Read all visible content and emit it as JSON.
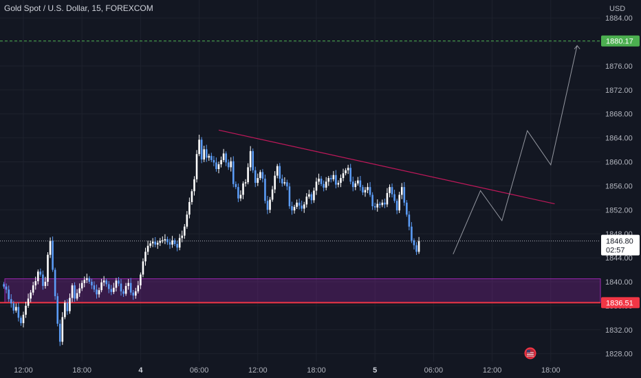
{
  "chart_data": {
    "type": "candlestick",
    "title": "Gold Spot / U.S. Dollar, 15, FOREXCOM",
    "currency": "USD",
    "y_ticks": [
      1828,
      1832,
      1836,
      1840,
      1844,
      1848,
      1852,
      1856,
      1860,
      1864,
      1868,
      1872,
      1876,
      1880,
      1884
    ],
    "y_tick_labels": [
      "1828.00",
      "1832.00",
      "1836.00",
      "1840.00",
      "1844.00",
      "1848.00",
      "1852.00",
      "1856.00",
      "1860.00",
      "1864.00",
      "1868.00",
      "1872.00",
      "1876.00",
      "1880.00",
      "1884.00"
    ],
    "ylim": [
      1826.7,
      1887.0
    ],
    "x_labels": [
      {
        "label": "12:00",
        "hour": 0,
        "bold": false
      },
      {
        "label": "18:00",
        "hour": 6,
        "bold": false
      },
      {
        "label": "4",
        "hour": 12,
        "bold": true
      },
      {
        "label": "06:00",
        "hour": 18,
        "bold": false
      },
      {
        "label": "12:00",
        "hour": 24,
        "bold": false
      },
      {
        "label": "18:00",
        "hour": 30,
        "bold": false
      },
      {
        "label": "5",
        "hour": 36,
        "bold": true
      },
      {
        "label": "06:00",
        "hour": 42,
        "bold": false
      },
      {
        "label": "12:00",
        "hour": 48,
        "bold": false
      },
      {
        "label": "18:00",
        "hour": 54,
        "bold": false
      }
    ],
    "current_price": {
      "value": 1846.8,
      "label": "1846.80",
      "countdown": "02:57"
    },
    "target_level": {
      "value": 1880.17,
      "label": "1880.17"
    },
    "support_level": {
      "value": 1836.51,
      "label": "1836.51"
    },
    "support_zone": {
      "from": 1836.51,
      "to": 1840.5,
      "start_hour": -1.9
    },
    "trendline": {
      "start": [
        20.0,
        1865.3
      ],
      "end": [
        54.4,
        1853.0
      ]
    },
    "projection_path": [
      [
        44.0,
        1844.6
      ],
      [
        46.8,
        1855.2
      ],
      [
        49.0,
        1850.2
      ],
      [
        51.6,
        1865.2
      ],
      [
        54.0,
        1859.5
      ],
      [
        56.7,
        1879.4
      ]
    ],
    "candles_bars_per_hour": 4,
    "candles_start_hour": -2.0,
    "candles_close": [
      1839.2,
      1838.7,
      1837.1,
      1836.4,
      1835.2,
      1835.8,
      1834.0,
      1833.1,
      1834.5,
      1836.0,
      1837.2,
      1838.2,
      1839.4,
      1840.1,
      1841.7,
      1841.2,
      1839.3,
      1840.0,
      1844.5,
      1846.8,
      1842.0,
      1837.6,
      1833.0,
      1830.0,
      1834.1,
      1836.5,
      1835.1,
      1837.3,
      1839.4,
      1837.2,
      1838.1,
      1838.9,
      1839.8,
      1840.3,
      1840.6,
      1840.0,
      1839.4,
      1838.7,
      1837.9,
      1838.6,
      1839.9,
      1840.2,
      1839.6,
      1838.8,
      1838.3,
      1839.0,
      1840.2,
      1839.7,
      1838.4,
      1838.0,
      1839.3,
      1839.8,
      1838.2,
      1837.7,
      1838.4,
      1839.4,
      1841.2,
      1843.4,
      1845.0,
      1846.0,
      1846.4,
      1846.7,
      1846.2,
      1846.5,
      1846.8,
      1846.9,
      1847.1,
      1846.6,
      1846.2,
      1846.9,
      1846.3,
      1845.7,
      1847.3,
      1847.7,
      1849.2,
      1851.2,
      1853.3,
      1855.1,
      1857.1,
      1861.3,
      1863.7,
      1860.4,
      1862.1,
      1860.7,
      1861.0,
      1860.3,
      1859.9,
      1858.8,
      1859.6,
      1860.3,
      1861.4,
      1859.9,
      1859.1,
      1860.1,
      1856.3,
      1855.8,
      1853.9,
      1854.5,
      1856.4,
      1856.6,
      1859.1,
      1861.8,
      1858.6,
      1856.5,
      1857.3,
      1858.3,
      1857.2,
      1853.5,
      1852.0,
      1853.7,
      1855.4,
      1857.7,
      1859.3,
      1857.2,
      1856.4,
      1856.6,
      1855.9,
      1852.6,
      1851.9,
      1852.5,
      1853.2,
      1852.7,
      1852.2,
      1852.9,
      1854.2,
      1854.6,
      1853.6,
      1855.2,
      1856.7,
      1857.2,
      1856.3,
      1855.7,
      1856.7,
      1857.3,
      1857.1,
      1857.8,
      1856.2,
      1856.5,
      1857.3,
      1858.1,
      1858.6,
      1859.0,
      1856.7,
      1855.8,
      1856.4,
      1856.9,
      1855.8,
      1854.9,
      1855.3,
      1855.8,
      1854.5,
      1852.6,
      1852.4,
      1853.0,
      1852.8,
      1853.2,
      1852.9,
      1854.8,
      1855.8,
      1854.6,
      1853.5,
      1851.9,
      1854.5,
      1855.8,
      1853.2,
      1851.2,
      1849.2,
      1846.9,
      1846.1,
      1845.0,
      1846.8
    ]
  }
}
